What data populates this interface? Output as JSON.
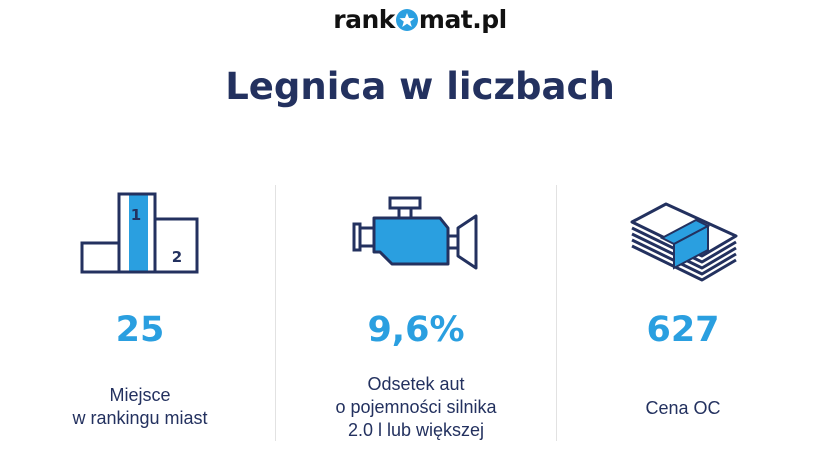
{
  "logo": {
    "left": "rank",
    "right": "mat.pl"
  },
  "title": "Legnica w liczbach",
  "colors": {
    "navy": "#23315f",
    "blue": "#2a9fe0",
    "divider": "#e2e2e2"
  },
  "stats": [
    {
      "icon": "podium-icon",
      "podium_first": "1",
      "podium_second": "2",
      "value": "25",
      "label_lines": [
        "Miejsce",
        "w rankingu miast"
      ]
    },
    {
      "icon": "engine-icon",
      "value": "9,6%",
      "label_lines": [
        "Odsetek aut",
        "o pojemności silnika",
        "2.0 l lub większej"
      ]
    },
    {
      "icon": "money-stack-icon",
      "value": "627",
      "label_lines": [
        "Cena OC"
      ]
    }
  ]
}
